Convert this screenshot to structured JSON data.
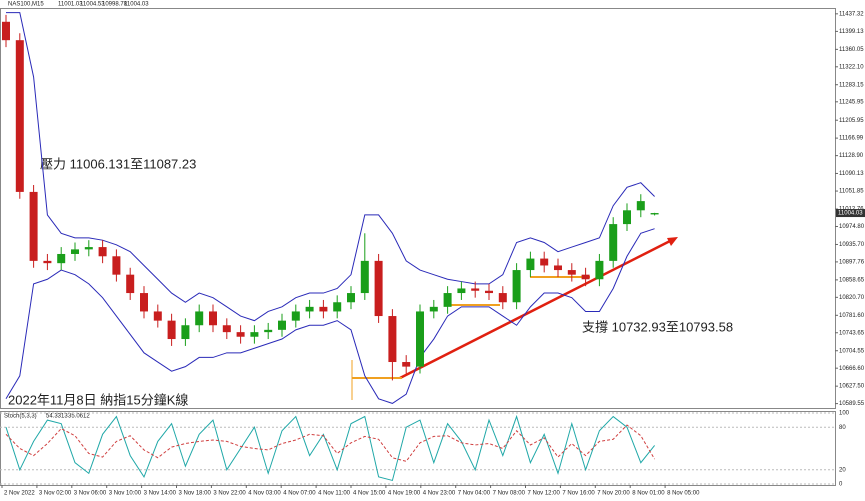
{
  "chart_data": {
    "type": "candlestick",
    "symbol": "NAS100,M15",
    "annotations": [
      "壓力 11006.131至11087.23",
      "支撐 10732.93至10793.58",
      "2022年11月8日 納指15分鐘K線"
    ],
    "up_color": "#1a9e1a",
    "down_color": "#c81e1e",
    "band_color": "#2a2ab8",
    "ylim": [
      10580,
      11450
    ],
    "yticks": [
      11437.32,
      11399.13,
      11360.05,
      {
        "value": 11322.1,
        "label": "11322.10"
      },
      11283.15,
      11245.95,
      11205.95,
      11166.99,
      {
        "value": 11128.9,
        "label": "11128.90"
      },
      11090.13,
      11051.85,
      11012.76,
      {
        "value": 10974.8,
        "label": "10974.80"
      },
      {
        "value": 10935.7,
        "label": "10935.70"
      },
      10897.76,
      10858.65,
      {
        "value": 10820.7,
        "label": "10820.70"
      },
      {
        "value": 10781.6,
        "label": "10781.60"
      },
      10743.65,
      10704.55,
      {
        "value": 10666.6,
        "label": "10666.60"
      },
      {
        "value": 10627.5,
        "label": "10627.50"
      },
      10589.55
    ],
    "last_price": 11004.03,
    "xticks": [
      "2 Nov 2022",
      "3 Nov 02:00",
      "3 Nov 06:00",
      "3 Nov 10:00",
      "3 Nov 14:00",
      "3 Nov 18:00",
      "3 Nov 22:00",
      "4 Nov 03:00",
      "4 Nov 07:00",
      "4 Nov 11:00",
      "4 Nov 15:00",
      "4 Nov 19:00",
      "4 Nov 23:00",
      "7 Nov 04:00",
      "7 Nov 08:00",
      "7 Nov 12:00",
      "7 Nov 16:00",
      "7 Nov 20:00",
      "8 Nov 01:00",
      "8 Nov 05:00"
    ],
    "open": [
      11420,
      11380,
      11050,
      10900,
      10895,
      10915,
      10925,
      10930,
      10910,
      10870,
      10830,
      10790,
      10770,
      10730,
      10760,
      10790,
      10760,
      10745,
      10735,
      10745,
      10750,
      10770,
      10790,
      10800,
      10790,
      10810,
      10830,
      10900,
      10780,
      10680,
      10670,
      10790,
      10800,
      10830,
      10840,
      10835,
      10830,
      10810,
      10880,
      10905,
      10890,
      10880,
      10870,
      10860,
      10900,
      10980,
      11010,
      11001.03
    ],
    "high": [
      11435,
      11395,
      11065,
      10915,
      10930,
      10940,
      10945,
      10945,
      10925,
      10885,
      10845,
      10805,
      10785,
      10775,
      10805,
      10805,
      10775,
      10760,
      10760,
      10765,
      10785,
      10805,
      10815,
      10815,
      10825,
      10845,
      10960,
      10915,
      10795,
      10695,
      10805,
      10815,
      10845,
      10855,
      10855,
      10850,
      10845,
      10895,
      10920,
      10920,
      10905,
      10895,
      10885,
      10915,
      10995,
      11025,
      11045,
      11004.53
    ],
    "low": [
      11365,
      11035,
      10885,
      10880,
      10880,
      10900,
      10910,
      10895,
      10855,
      10815,
      10775,
      10755,
      10715,
      10715,
      10745,
      10745,
      10730,
      10720,
      10720,
      10730,
      10735,
      10755,
      10775,
      10775,
      10775,
      10795,
      10815,
      10765,
      10640,
      10655,
      10655,
      10775,
      10785,
      10815,
      10820,
      10815,
      10795,
      10795,
      10865,
      10875,
      10865,
      10855,
      10845,
      10845,
      10885,
      10965,
      10995,
      10998.78
    ],
    "close": [
      11380,
      11050,
      10900,
      10895,
      10915,
      10925,
      10930,
      10910,
      10870,
      10830,
      10790,
      10770,
      10730,
      10760,
      10790,
      10760,
      10745,
      10735,
      10745,
      10750,
      10770,
      10790,
      10800,
      10790,
      10810,
      10830,
      10900,
      10780,
      10680,
      10670,
      10790,
      10800,
      10830,
      10840,
      10835,
      10830,
      10810,
      10880,
      10905,
      10890,
      10880,
      10870,
      10860,
      10900,
      10980,
      11010,
      11030,
      11004.03
    ],
    "band_upper": [
      11440,
      11440,
      11300,
      11000,
      10960,
      10950,
      10950,
      10945,
      10935,
      10920,
      10890,
      10860,
      10830,
      10810,
      10830,
      10820,
      10800,
      10780,
      10770,
      10790,
      10800,
      10820,
      10830,
      10830,
      10840,
      10870,
      11000,
      11000,
      10960,
      10900,
      10880,
      10870,
      10860,
      10855,
      10850,
      10850,
      10870,
      10940,
      10950,
      10940,
      10920,
      10930,
      10940,
      10950,
      11020,
      11060,
      11070,
      11040
    ],
    "band_lower": [
      10600,
      10650,
      10850,
      10860,
      10880,
      10870,
      10850,
      10820,
      10780,
      10740,
      10700,
      10680,
      10660,
      10670,
      10690,
      10690,
      10700,
      10700,
      10710,
      10720,
      10730,
      10750,
      10760,
      10760,
      10770,
      10750,
      10650,
      10600,
      10590,
      10610,
      10690,
      10730,
      10780,
      10800,
      10800,
      10800,
      10780,
      10760,
      10800,
      10830,
      10830,
      10820,
      10790,
      10790,
      10840,
      10910,
      10960,
      10970
    ],
    "stoch": {
      "label": "Stoch(5,3,3)",
      "ylim": [
        0,
        100
      ],
      "yticks": [
        100,
        80,
        20,
        0
      ],
      "k_color": "#20a8a8",
      "d_color": "#d04040",
      "k": [
        80,
        20,
        60,
        90,
        85,
        30,
        15,
        70,
        95,
        40,
        10,
        60,
        85,
        25,
        70,
        90,
        20,
        50,
        80,
        15,
        75,
        95,
        40,
        70,
        20,
        85,
        95,
        10,
        5,
        80,
        90,
        30,
        85,
        60,
        20,
        90,
        40,
        95,
        30,
        70,
        15,
        85,
        20,
        75,
        95,
        80,
        30,
        54.3313
      ],
      "d": [
        70,
        50,
        40,
        57,
        78,
        68,
        43,
        38,
        60,
        68,
        48,
        37,
        52,
        57,
        60,
        62,
        60,
        53,
        50,
        48,
        57,
        62,
        70,
        68,
        43,
        58,
        67,
        63,
        37,
        32,
        58,
        67,
        68,
        58,
        55,
        57,
        50,
        75,
        55,
        65,
        38,
        57,
        40,
        60,
        63,
        83,
        68,
        35.0612
      ]
    }
  }
}
